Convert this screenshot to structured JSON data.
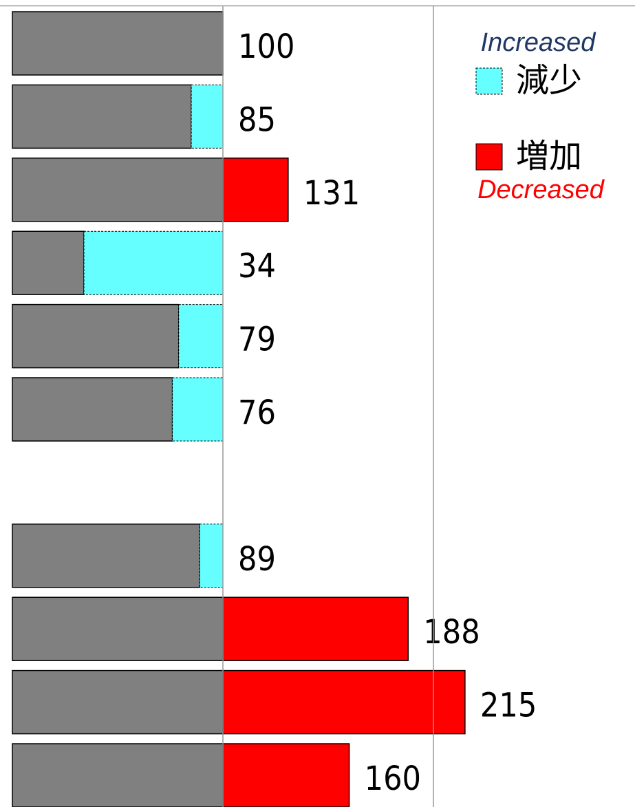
{
  "chart_data": {
    "type": "bar",
    "orientation": "horizontal",
    "categories": [
      null,
      null,
      null,
      null,
      null,
      null,
      null,
      null,
      null,
      null,
      null
    ],
    "values": [
      100,
      85,
      131,
      34,
      79,
      76,
      null,
      89,
      188,
      215,
      160
    ],
    "base_color": "#808080",
    "increase_color": "#ff0000",
    "decrease_color": "#66ffff",
    "xlim": [
      0,
      300
    ],
    "xticks": [
      100,
      200
    ],
    "grid": true,
    "legend": [
      {
        "label": "減少",
        "color": "#66ffff"
      },
      {
        "label": "増加",
        "color": "#ff0000"
      }
    ],
    "annotations": [
      {
        "text": "Increased",
        "color": "#1f3864"
      },
      {
        "text": "Decreased",
        "color": "#ff0000"
      }
    ]
  }
}
